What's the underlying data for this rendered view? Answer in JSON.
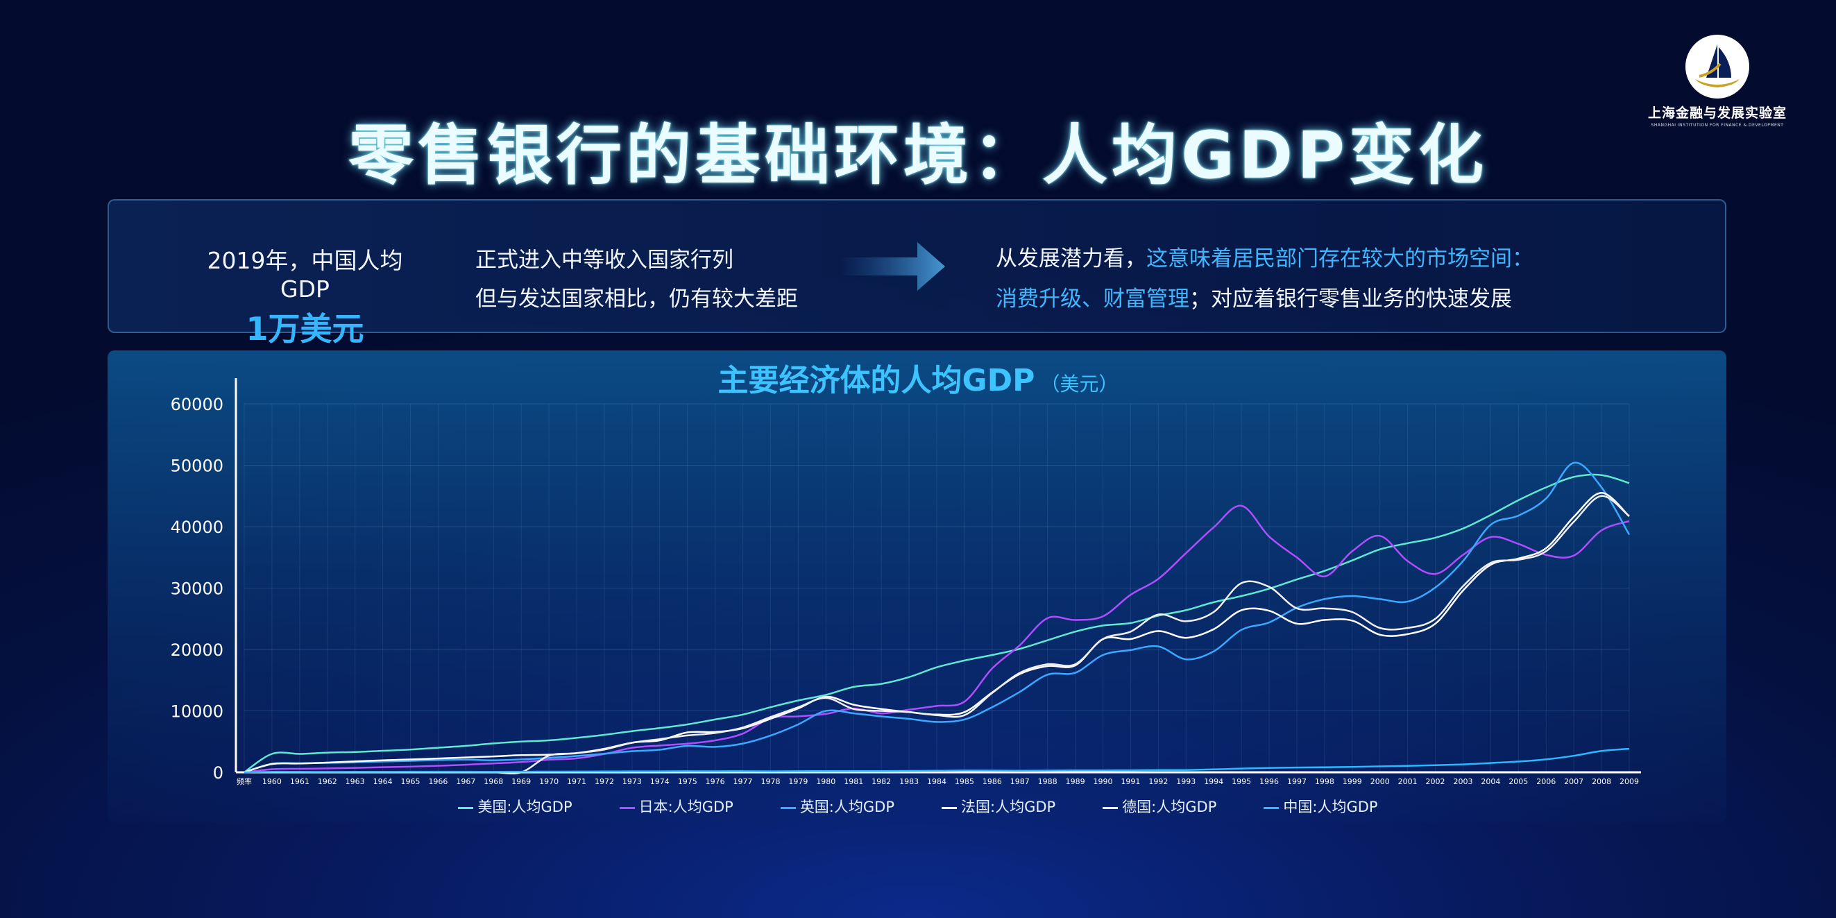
{
  "logo": {
    "name": "上海金融与发展实验室",
    "sub": "SHANGHAI INSTITUTION FOR FINANCE & DEVELOPMENT"
  },
  "title": "零售银行的基础环境：人均GDP变化",
  "info": {
    "left_line1": "2019年，中国人均GDP",
    "left_line2": "1万美元",
    "mid_line1": "正式进入中等收入国家行列",
    "mid_line2": "但与发达国家相比，仍有较大差距",
    "right_line1_a": "从发展潜力看，",
    "right_line1_b": "这意味着居民部门存在较大的市场空间：",
    "right_line2_a": "消费升级、财富管理",
    "right_line2_b": "；对应着银行零售业务的快速发展"
  },
  "colors": {
    "us": "#5fe8d2",
    "jp": "#b04dff",
    "uk": "#3aa9ff",
    "fr": "#ffffff",
    "de": "#f0f0f0",
    "cn": "#29b9ff",
    "highlight": "#3fb7ff"
  },
  "chart_data": {
    "type": "line",
    "title": "主要经济体的人均GDP",
    "unit": "（美元）",
    "ylim": [
      0,
      60000
    ],
    "yticks": [
      0,
      10000,
      20000,
      30000,
      40000,
      50000,
      60000
    ],
    "grid": true,
    "legend_position": "bottom",
    "x": [
      "频率",
      "1960",
      "1961",
      "1962",
      "1963",
      "1964",
      "1965",
      "1966",
      "1967",
      "1968",
      "1969",
      "1970",
      "1971",
      "1972",
      "1973",
      "1974",
      "1975",
      "1976",
      "1977",
      "1978",
      "1979",
      "1980",
      "1981",
      "1982",
      "1983",
      "1984",
      "1985",
      "1986",
      "1987",
      "1988",
      "1989",
      "1990",
      "1991",
      "1992",
      "1993",
      "1994",
      "1995",
      "1996",
      "1997",
      "1998",
      "1999",
      "2000",
      "2001",
      "2002",
      "2003",
      "2004",
      "2005",
      "2006",
      "2007",
      "2008",
      "2009"
    ],
    "series": [
      {
        "name": "美国:人均GDP",
        "key": "us",
        "values": [
          0,
          3000,
          3000,
          3200,
          3300,
          3500,
          3700,
          4000,
          4300,
          4700,
          5000,
          5200,
          5600,
          6100,
          6700,
          7200,
          7800,
          8600,
          9400,
          10600,
          11700,
          12600,
          13900,
          14400,
          15500,
          17100,
          18200,
          19100,
          20100,
          21500,
          22900,
          23900,
          24300,
          25500,
          26400,
          27700,
          28700,
          29900,
          31400,
          32800,
          34500,
          36300,
          37300,
          38200,
          39700,
          41900,
          44300,
          46400,
          48100,
          48400,
          47100
        ]
      },
      {
        "name": "日本:人均GDP",
        "key": "jp",
        "values": [
          0,
          500,
          560,
          630,
          720,
          840,
          920,
          1060,
          1230,
          1450,
          1670,
          2040,
          2270,
          2970,
          3990,
          4350,
          4660,
          5200,
          6300,
          8800,
          9100,
          9500,
          10400,
          9600,
          10200,
          10800,
          11500,
          16900,
          20700,
          25100,
          24800,
          25400,
          28900,
          31500,
          35700,
          39900,
          43400,
          38400,
          35000,
          31900,
          36000,
          38500,
          34400,
          32300,
          35400,
          38300,
          37200,
          35400,
          35300,
          39400,
          40900
        ]
      },
      {
        "name": "英国:人均GDP",
        "key": "uk",
        "values": [
          0,
          1400,
          1470,
          1530,
          1610,
          1750,
          1870,
          1990,
          2060,
          1950,
          2100,
          2350,
          2650,
          3030,
          3430,
          3670,
          4300,
          4140,
          4680,
          5980,
          7800,
          10000,
          9600,
          9100,
          8700,
          8200,
          8600,
          10600,
          13100,
          15900,
          16200,
          19100,
          19900,
          20500,
          18400,
          19700,
          23200,
          24400,
          26800,
          28200,
          28700,
          28200,
          27800,
          30100,
          34400,
          40300,
          41800,
          44600,
          50400,
          46400,
          38700
        ]
      },
      {
        "name": "法国:人均GDP",
        "key": "fr",
        "values": [
          0,
          1340,
          1430,
          1580,
          1770,
          1960,
          2090,
          2250,
          2420,
          2590,
          2790,
          2870,
          3140,
          3830,
          4830,
          5200,
          6500,
          6570,
          7150,
          8710,
          10400,
          12300,
          11000,
          10300,
          9800,
          9400,
          9800,
          13000,
          16000,
          17300,
          17400,
          21700,
          21700,
          23000,
          21900,
          23300,
          26400,
          26300,
          24200,
          24800,
          24700,
          22400,
          22500,
          24200,
          29600,
          33800,
          34800,
          36500,
          41600,
          45500,
          41700
        ]
      },
      {
        "name": "德国:人均GDP",
        "key": "de",
        "values": [
          0,
          0,
          0,
          0,
          0,
          0,
          0,
          0,
          0,
          0,
          0,
          2700,
          3100,
          3700,
          4800,
          5400,
          6000,
          6400,
          7300,
          9000,
          10600,
          12100,
          10300,
          10000,
          9800,
          9300,
          9300,
          12900,
          16200,
          17600,
          17600,
          21700,
          22900,
          25700,
          24600,
          26100,
          30800,
          30200,
          26700,
          26700,
          26100,
          23500,
          23500,
          25000,
          30300,
          34100,
          34600,
          36000,
          40800,
          45000,
          41700
        ]
      },
      {
        "name": "中国:人均GDP",
        "key": "cn",
        "values": [
          0,
          90,
          76,
          71,
          74,
          85,
          98,
          104,
          97,
          91,
          100,
          113,
          119,
          132,
          157,
          160,
          178,
          165,
          185,
          156,
          184,
          195,
          197,
          203,
          225,
          250,
          294,
          281,
          251,
          284,
          311,
          318,
          333,
          366,
          377,
          473,
          610,
          709,
          782,
          829,
          873,
          959,
          1053,
          1149,
          1289,
          1509,
          1753,
          2099,
          2694,
          3468,
          3832
        ]
      }
    ]
  }
}
